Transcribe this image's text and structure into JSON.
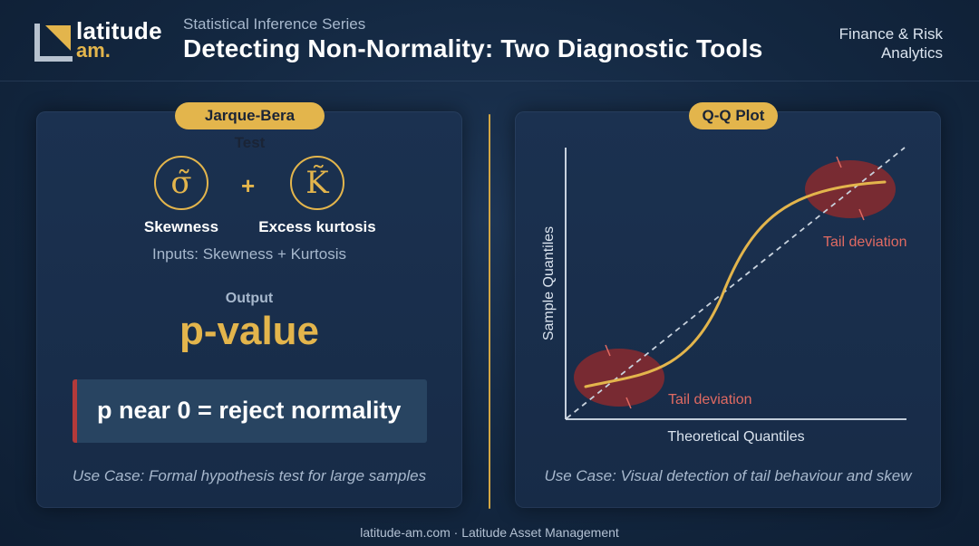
{
  "header": {
    "logo_line1": "latitude",
    "logo_line2": "am.",
    "series": "Statistical Inference Series",
    "title": "Detecting Non-Normality: Two Diagnostic Tools",
    "tag_line1": "Finance & Risk",
    "tag_line2": "Analytics"
  },
  "jarque_bera": {
    "pill": "Jarque-Bera Test",
    "skew_symbol": "σ̃",
    "skew_label": "Skewness",
    "plus": "+",
    "kurt_symbol": "K̃",
    "kurt_label": "Excess kurtosis",
    "inputs_note": "Inputs: Skewness + Kurtosis",
    "output_label": "Output",
    "output_value": "p-value",
    "rule": "p near 0 = reject normality",
    "use_case": "Use Case: Formal hypothesis test for large samples"
  },
  "qq_plot": {
    "pill": "Q-Q Plot",
    "ylabel": "Sample Quantiles",
    "xlabel": "Theoretical Quantiles",
    "tail_upper": "Tail deviation",
    "tail_lower": "Tail deviation",
    "use_case": "Use Case: Visual detection of tail behaviour and skew"
  },
  "footer": "latitude-am.com · Latitude Asset Management",
  "colors": {
    "accent": "#e3b54c",
    "background": "#132740",
    "card": "#1b3150",
    "warning": "#b33a3a",
    "tail_text": "#e06a62"
  }
}
